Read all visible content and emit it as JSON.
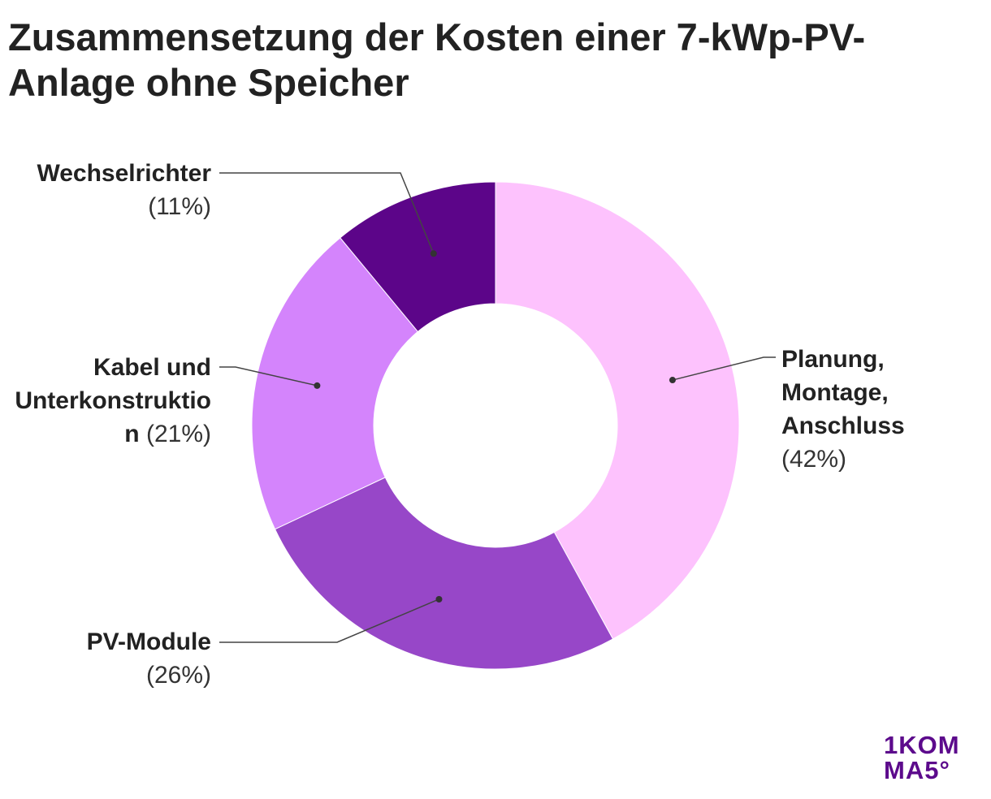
{
  "chart_data": {
    "type": "pie",
    "variant": "donut",
    "title": "Zusammensetzung der Kosten einer 7-kWp-PV-Anlage ohne Speicher",
    "slices": [
      {
        "label": "Planung, Montage, Anschluss",
        "value": 42,
        "pct_label": "(42%)",
        "color": "#fdc2fd"
      },
      {
        "label": "PV-Module",
        "value": 26,
        "pct_label": "(26%)",
        "color": "#9747c8"
      },
      {
        "label": "Kabel und Unterkonstruktion",
        "value": 21,
        "pct_label": "(21%)",
        "color": "#d484fc"
      },
      {
        "label": "Wechselrichter",
        "value": 11,
        "pct_label": "(11%)",
        "color": "#5c0589"
      }
    ]
  },
  "logo": {
    "line1": "1KOM",
    "line2": "MA5°"
  }
}
